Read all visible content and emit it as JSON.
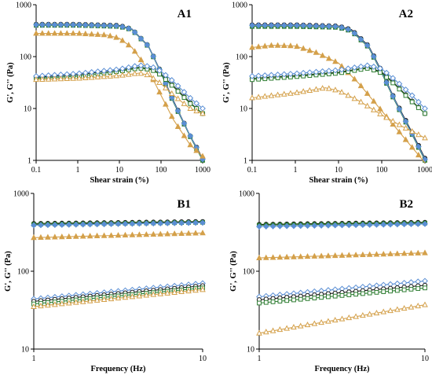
{
  "chart_data": [
    {
      "panel": "A1",
      "type": "line",
      "xlabel": "Shear strain (%)",
      "ylabel": "G', G'' (Pa)",
      "xscale": "log",
      "yscale": "log",
      "xlim": [
        0.1,
        1000
      ],
      "ylim": [
        1,
        1000
      ],
      "xticks": [
        "0.1",
        "1",
        "10",
        "100",
        "1000"
      ],
      "yticks": [
        "1",
        "10",
        "100",
        "1000"
      ],
      "series": [
        {
          "color": "#1a1a1a",
          "marker": "filled-circle",
          "x": [
            0.1,
            1,
            10,
            20,
            50,
            100,
            200,
            500,
            1000
          ],
          "y": [
            420,
            420,
            400,
            340,
            160,
            50,
            14,
            3,
            1.1
          ]
        },
        {
          "color": "#2e7d32",
          "marker": "filled-square",
          "x": [
            0.1,
            1,
            10,
            20,
            50,
            100,
            200,
            500,
            1000
          ],
          "y": [
            400,
            400,
            380,
            330,
            155,
            48,
            13,
            2.9,
            1.0
          ]
        },
        {
          "color": "#5b8fd4",
          "marker": "filled-diamond",
          "x": [
            0.1,
            1,
            10,
            20,
            50,
            100,
            200,
            500,
            1000
          ],
          "y": [
            410,
            410,
            390,
            335,
            158,
            49,
            13.5,
            3,
            1.05
          ]
        },
        {
          "color": "#d4a04a",
          "marker": "filled-triangle",
          "x": [
            0.1,
            1,
            5,
            10,
            20,
            50,
            100,
            200,
            500,
            1000
          ],
          "y": [
            280,
            280,
            260,
            225,
            150,
            55,
            18,
            6,
            2,
            1.2
          ]
        },
        {
          "color": "#1a1a1a",
          "marker": "open-circle",
          "x": [
            0.1,
            1,
            10,
            30,
            60,
            100,
            200,
            500,
            1000
          ],
          "y": [
            40,
            45,
            55,
            62,
            58,
            45,
            27,
            13,
            8
          ]
        },
        {
          "color": "#2e7d32",
          "marker": "open-square",
          "x": [
            0.1,
            1,
            10,
            30,
            60,
            100,
            200,
            500,
            1000
          ],
          "y": [
            38,
            42,
            52,
            60,
            56,
            44,
            26,
            12.5,
            8
          ]
        },
        {
          "color": "#5b8fd4",
          "marker": "open-diamond",
          "x": [
            0.1,
            1,
            10,
            30,
            60,
            100,
            200,
            500,
            1000
          ],
          "y": [
            42,
            47,
            57,
            68,
            64,
            52,
            33,
            16,
            10
          ]
        },
        {
          "color": "#d4a04a",
          "marker": "open-triangle",
          "x": [
            0.1,
            1,
            10,
            30,
            50,
            100,
            200,
            500,
            1000
          ],
          "y": [
            36,
            38,
            43,
            48,
            44,
            30,
            18,
            10,
            8
          ]
        }
      ]
    },
    {
      "panel": "A2",
      "type": "line",
      "xlabel": "Shear strain (%)",
      "ylabel": "G', G'' (Pa)",
      "xscale": "log",
      "yscale": "log",
      "xlim": [
        0.1,
        1000
      ],
      "ylim": [
        1,
        1000
      ],
      "xticks": [
        "0.1",
        "1",
        "10",
        "100",
        "1000"
      ],
      "yticks": [
        "1",
        "10",
        "100",
        "1000"
      ],
      "series": [
        {
          "color": "#1a1a1a",
          "marker": "filled-circle",
          "x": [
            0.1,
            1,
            10,
            20,
            50,
            100,
            200,
            500,
            1000
          ],
          "y": [
            410,
            410,
            390,
            330,
            160,
            52,
            15,
            3.5,
            1.1
          ]
        },
        {
          "color": "#2e7d32",
          "marker": "filled-square",
          "x": [
            0.1,
            1,
            10,
            20,
            50,
            100,
            200,
            500,
            1000
          ],
          "y": [
            380,
            380,
            365,
            310,
            150,
            48,
            14,
            3.2,
            1.0
          ]
        },
        {
          "color": "#5b8fd4",
          "marker": "filled-diamond",
          "x": [
            0.1,
            1,
            10,
            20,
            50,
            100,
            200,
            500,
            1000
          ],
          "y": [
            400,
            400,
            380,
            320,
            155,
            50,
            14.5,
            3.3,
            1.05
          ]
        },
        {
          "color": "#d4a04a",
          "marker": "filled-triangle",
          "x": [
            0.1,
            0.3,
            1,
            3,
            10,
            30,
            100,
            300,
            1000
          ],
          "y": [
            150,
            165,
            160,
            120,
            75,
            30,
            9,
            3,
            0.9
          ]
        },
        {
          "color": "#1a1a1a",
          "marker": "open-circle",
          "x": [
            0.1,
            1,
            10,
            50,
            100,
            200,
            500,
            1000
          ],
          "y": [
            38,
            43,
            50,
            62,
            50,
            30,
            14,
            8
          ]
        },
        {
          "color": "#2e7d32",
          "marker": "open-square",
          "x": [
            0.1,
            1,
            10,
            50,
            100,
            200,
            500,
            1000
          ],
          "y": [
            36,
            41,
            48,
            60,
            48,
            29,
            13.5,
            8
          ]
        },
        {
          "color": "#5b8fd4",
          "marker": "open-diamond",
          "x": [
            0.1,
            1,
            10,
            50,
            100,
            200,
            500,
            1000
          ],
          "y": [
            42,
            47,
            55,
            68,
            58,
            36,
            18,
            10
          ]
        },
        {
          "color": "#d4a04a",
          "marker": "open-triangle",
          "x": [
            0.1,
            1,
            5,
            10,
            30,
            100,
            300,
            1000
          ],
          "y": [
            16,
            20,
            25,
            22,
            14,
            7.5,
            4.5,
            2.7
          ]
        }
      ]
    },
    {
      "panel": "B1",
      "type": "line",
      "xlabel": "Frequency (Hz)",
      "ylabel": "G', G'' (Pa)",
      "xscale": "log",
      "yscale": "log",
      "xlim": [
        1,
        10
      ],
      "ylim": [
        10,
        1000
      ],
      "xticks": [
        "1",
        "10"
      ],
      "yticks": [
        "10",
        "100",
        "1000"
      ],
      "series": [
        {
          "color": "#1a1a1a",
          "marker": "filled-circle",
          "x": [
            1,
            10
          ],
          "y": [
            410,
            435
          ]
        },
        {
          "color": "#2e7d32",
          "marker": "filled-square",
          "x": [
            1,
            10
          ],
          "y": [
            400,
            425
          ]
        },
        {
          "color": "#5b8fd4",
          "marker": "filled-diamond",
          "x": [
            1,
            10
          ],
          "y": [
            390,
            420
          ]
        },
        {
          "color": "#d4a04a",
          "marker": "filled-triangle",
          "x": [
            1,
            10
          ],
          "y": [
            270,
            310
          ]
        },
        {
          "color": "#5b8fd4",
          "marker": "open-diamond",
          "x": [
            1,
            10
          ],
          "y": [
            44,
            70
          ]
        },
        {
          "color": "#1a1a1a",
          "marker": "open-circle",
          "x": [
            1,
            10
          ],
          "y": [
            41,
            65
          ]
        },
        {
          "color": "#2e7d32",
          "marker": "open-square",
          "x": [
            1,
            10
          ],
          "y": [
            38,
            61
          ]
        },
        {
          "color": "#d4a04a",
          "marker": "open-triangle",
          "x": [
            1,
            10
          ],
          "y": [
            35,
            58
          ]
        }
      ]
    },
    {
      "panel": "B2",
      "type": "line",
      "xlabel": "Frequency (Hz)",
      "ylabel": "G', G'' (Pa)",
      "xscale": "log",
      "yscale": "log",
      "xlim": [
        1,
        10
      ],
      "ylim": [
        10,
        1000
      ],
      "xticks": [
        "1",
        "10"
      ],
      "yticks": [
        "10",
        "100",
        "1000"
      ],
      "series": [
        {
          "color": "#1a1a1a",
          "marker": "filled-circle",
          "x": [
            1,
            10
          ],
          "y": [
            400,
            425
          ]
        },
        {
          "color": "#2e7d32",
          "marker": "filled-square",
          "x": [
            1,
            10
          ],
          "y": [
            390,
            415
          ]
        },
        {
          "color": "#5b8fd4",
          "marker": "filled-diamond",
          "x": [
            1,
            10
          ],
          "y": [
            375,
            405
          ]
        },
        {
          "color": "#d4a04a",
          "marker": "filled-triangle",
          "x": [
            1,
            10
          ],
          "y": [
            148,
            172
          ]
        },
        {
          "color": "#5b8fd4",
          "marker": "open-diamond",
          "x": [
            1,
            10
          ],
          "y": [
            47,
            75
          ]
        },
        {
          "color": "#1a1a1a",
          "marker": "open-circle",
          "x": [
            1,
            10
          ],
          "y": [
            43,
            66
          ]
        },
        {
          "color": "#2e7d32",
          "marker": "open-square",
          "x": [
            1,
            10
          ],
          "y": [
            39,
            61
          ]
        },
        {
          "color": "#d4a04a",
          "marker": "open-triangle",
          "x": [
            1,
            10
          ],
          "y": [
            16,
            37
          ]
        }
      ]
    }
  ]
}
